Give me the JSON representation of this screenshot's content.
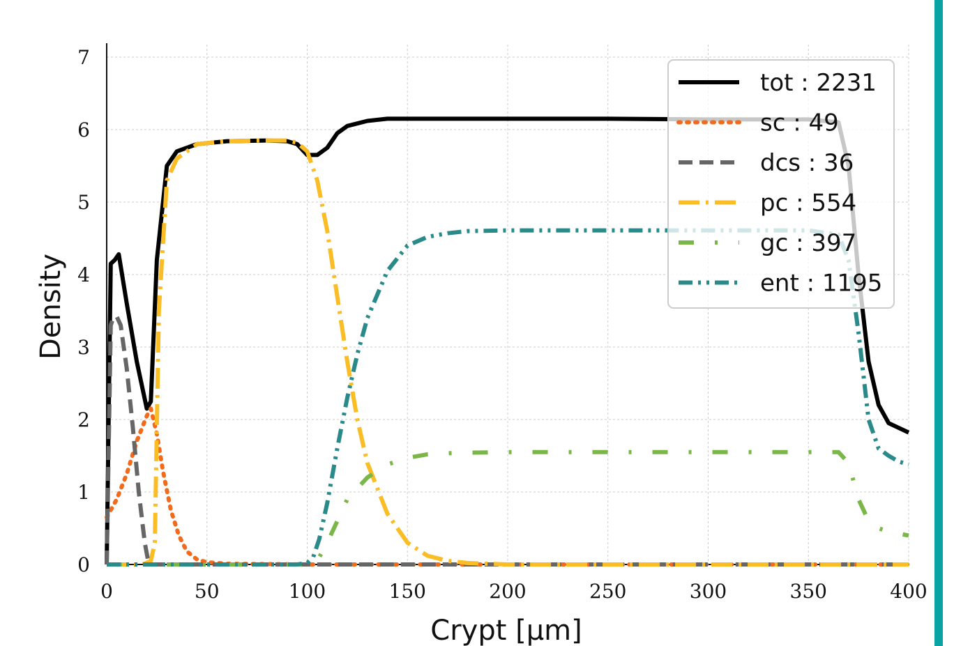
{
  "chart_data": {
    "type": "line",
    "xlabel": "Crypt [μm]",
    "ylabel": "Density",
    "xlim": [
      0,
      400
    ],
    "ylim": [
      0,
      7
    ],
    "xticks": [
      0,
      50,
      100,
      150,
      200,
      250,
      300,
      350,
      400
    ],
    "yticks": [
      0,
      1,
      2,
      3,
      4,
      5,
      6,
      7
    ],
    "grid": true,
    "legend_position": "top-right",
    "series": [
      {
        "name": "tot",
        "count_label": "tot : 2231",
        "color": "#000000",
        "dash": "solid",
        "x": [
          0,
          2,
          4,
          6,
          10,
          15,
          20,
          22,
          25,
          30,
          35,
          45,
          60,
          80,
          90,
          95,
          100,
          105,
          110,
          115,
          120,
          130,
          140,
          150,
          175,
          200,
          250,
          300,
          350,
          365,
          370,
          375,
          380,
          385,
          390,
          400
        ],
        "y": [
          0,
          4.15,
          4.2,
          4.28,
          3.6,
          2.8,
          2.15,
          2.25,
          4.2,
          5.5,
          5.7,
          5.8,
          5.84,
          5.85,
          5.84,
          5.8,
          5.65,
          5.65,
          5.75,
          5.95,
          6.05,
          6.12,
          6.15,
          6.15,
          6.15,
          6.15,
          6.15,
          6.14,
          6.14,
          6.1,
          5.5,
          4.0,
          2.8,
          2.2,
          1.95,
          1.82
        ]
      },
      {
        "name": "sc",
        "count_label": "sc : 49",
        "color": "#f26b1d",
        "dash": "dotted",
        "x": [
          0,
          5,
          10,
          15,
          20,
          22,
          25,
          28,
          32,
          36,
          40,
          45,
          50,
          60,
          100,
          200,
          300,
          400
        ],
        "y": [
          0.65,
          0.9,
          1.25,
          1.7,
          2.05,
          2.15,
          1.8,
          1.3,
          0.75,
          0.4,
          0.18,
          0.07,
          0.03,
          0.01,
          0,
          0,
          0,
          0
        ],
        "note": "",
        "id": ""
      },
      {
        "name": "dcs",
        "count_label": "dcs : 36",
        "color": "#666666",
        "dash": "dashed",
        "x": [
          0,
          2,
          3,
          5,
          7,
          10,
          13,
          16,
          19,
          21,
          25,
          100,
          200,
          300,
          400
        ],
        "y": [
          0,
          3.3,
          3.38,
          3.42,
          3.3,
          2.7,
          1.9,
          1.0,
          0.3,
          0,
          0,
          0,
          0,
          0,
          0
        ]
      },
      {
        "name": "pc",
        "count_label": "pc : 554",
        "color": "#fbbd25",
        "dash": "dashdot",
        "x": [
          0,
          18,
          22,
          24,
          26,
          30,
          35,
          45,
          60,
          75,
          90,
          95,
          100,
          105,
          110,
          115,
          120,
          125,
          130,
          140,
          150,
          160,
          170,
          180,
          200,
          300,
          400
        ],
        "y": [
          0,
          0,
          0.05,
          0.3,
          3.5,
          5.3,
          5.6,
          5.8,
          5.84,
          5.85,
          5.85,
          5.82,
          5.7,
          5.3,
          4.6,
          3.7,
          2.8,
          2.0,
          1.4,
          0.7,
          0.3,
          0.12,
          0.05,
          0.02,
          0,
          0,
          0
        ]
      },
      {
        "name": "gc",
        "count_label": "gc : 397",
        "color": "#7ab648",
        "dash": "loosedashdot",
        "x": [
          0,
          100,
          105,
          110,
          120,
          130,
          140,
          150,
          160,
          175,
          200,
          250,
          300,
          350,
          365,
          370,
          375,
          380,
          385,
          390,
          400
        ],
        "y": [
          0,
          0,
          0.05,
          0.3,
          0.9,
          1.2,
          1.38,
          1.47,
          1.52,
          1.54,
          1.55,
          1.55,
          1.55,
          1.55,
          1.55,
          1.4,
          0.9,
          0.6,
          0.5,
          0.45,
          0.4
        ]
      },
      {
        "name": "ent",
        "count_label": "ent : 1195",
        "color": "#2a8a8a",
        "dash": "dashdotdot",
        "x": [
          0,
          95,
          100,
          103,
          106,
          110,
          115,
          120,
          125,
          130,
          140,
          150,
          160,
          170,
          180,
          200,
          250,
          300,
          350,
          365,
          370,
          375,
          380,
          385,
          390,
          395,
          400
        ],
        "y": [
          0,
          0,
          0.02,
          0.1,
          0.35,
          0.85,
          1.6,
          2.3,
          2.9,
          3.4,
          4.05,
          4.4,
          4.52,
          4.57,
          4.6,
          4.61,
          4.61,
          4.61,
          4.61,
          4.55,
          4.2,
          3.2,
          2.0,
          1.6,
          1.5,
          1.42,
          1.38
        ]
      }
    ]
  }
}
